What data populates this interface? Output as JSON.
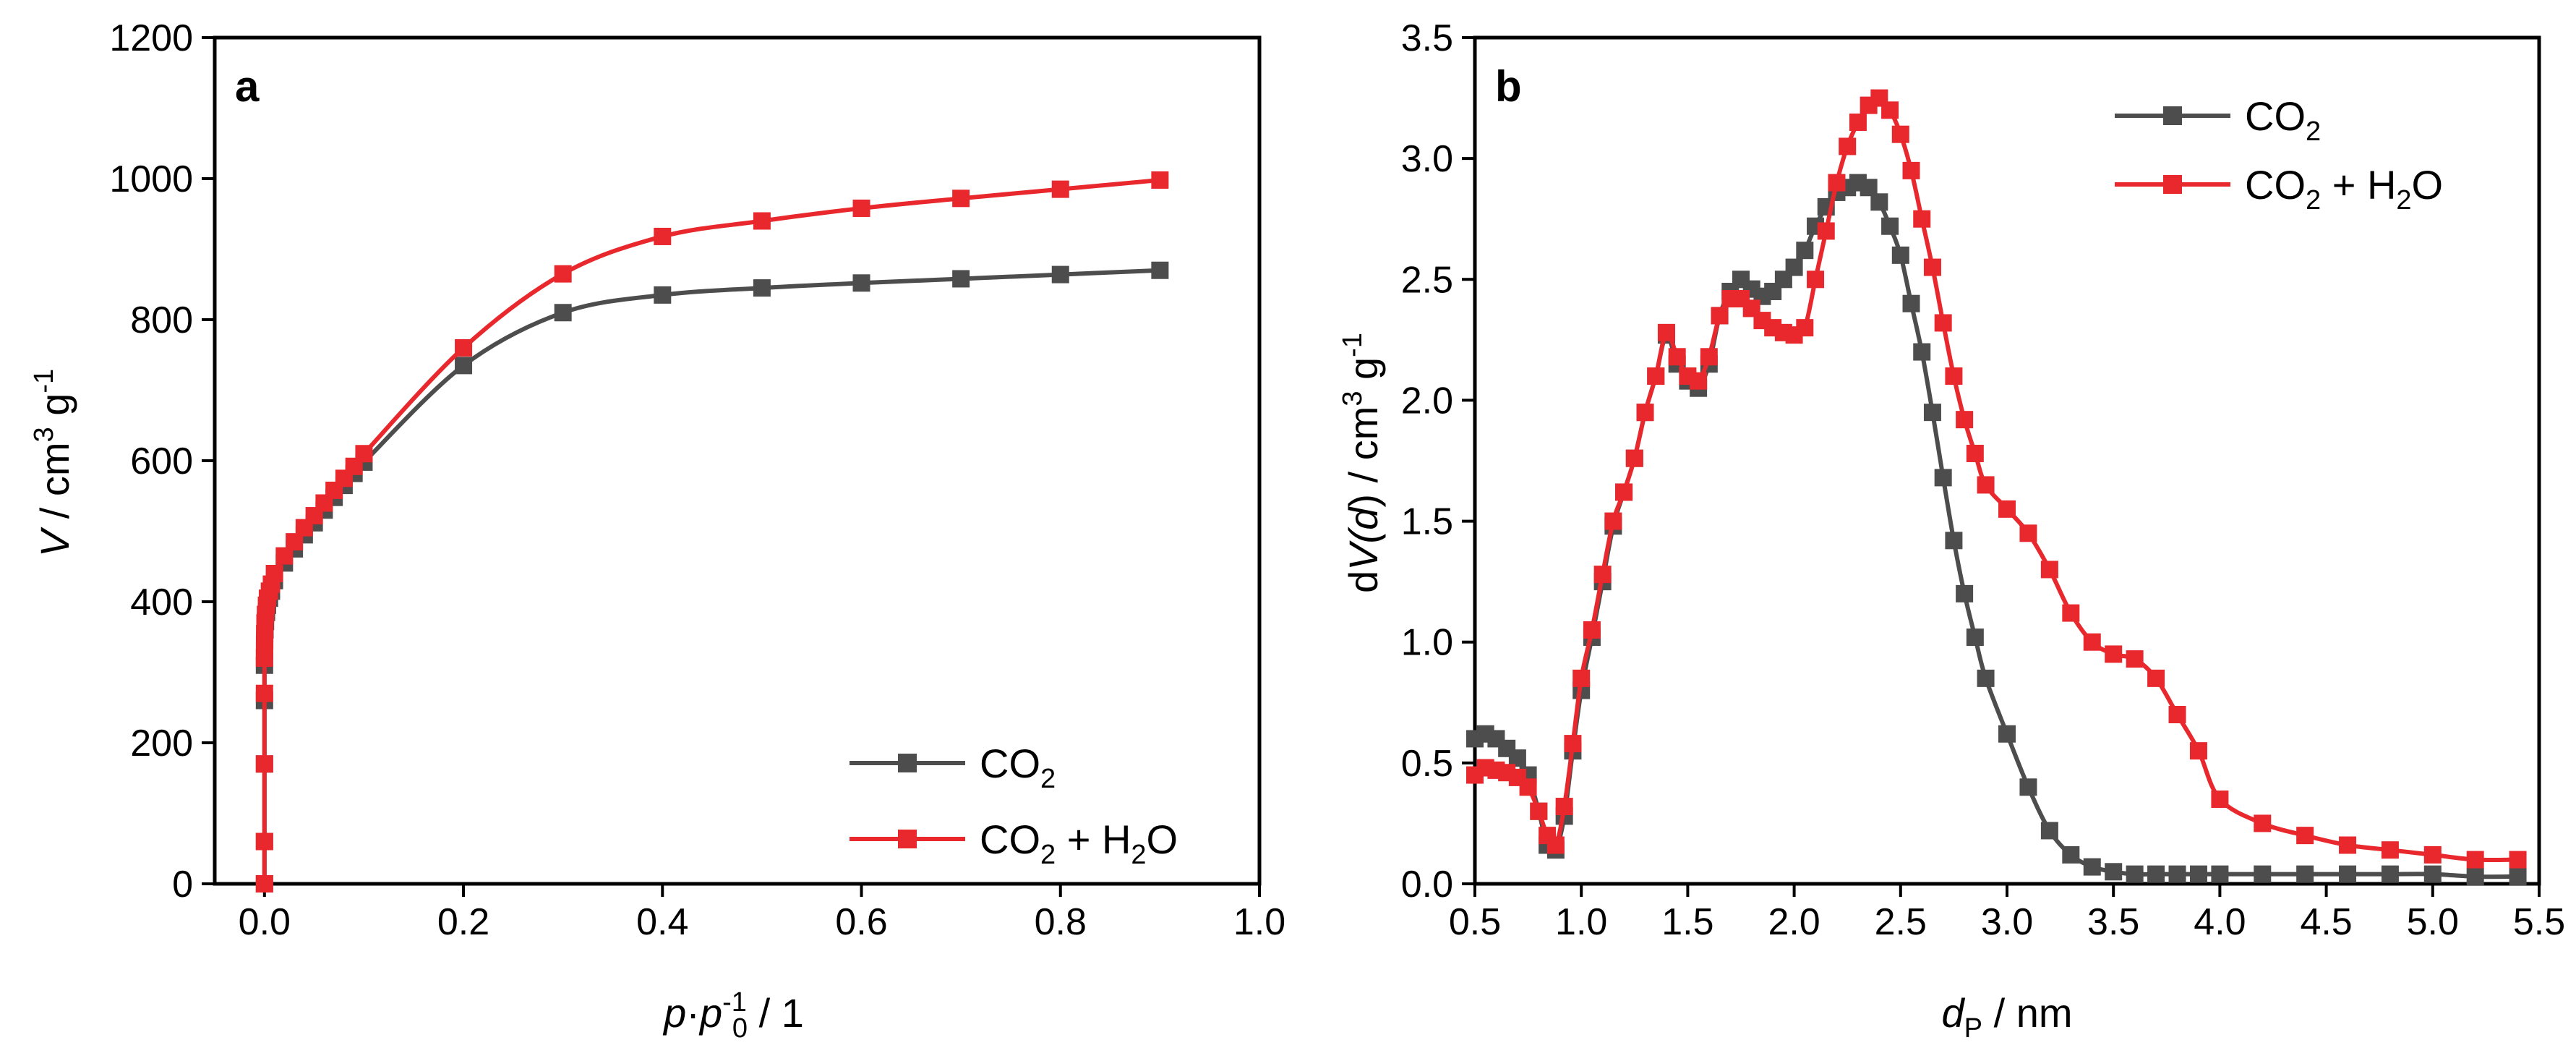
{
  "chart_data": [
    {
      "panel": "a",
      "type": "line",
      "xlabel": "p·p0-1 / 1",
      "ylabel": "V / cm3 g-1",
      "xlim": [
        -0.05,
        1.0
      ],
      "ylim": [
        0,
        1200
      ],
      "xticks": [
        0.0,
        0.2,
        0.4,
        0.6,
        0.8,
        1.0
      ],
      "xtick_labels": [
        "0.0",
        "0.2",
        "0.4",
        "0.6",
        "0.8",
        "1.0"
      ],
      "yticks": [
        0,
        200,
        400,
        600,
        800,
        1000,
        1200
      ],
      "ytick_labels": [
        "0",
        "200",
        "400",
        "600",
        "800",
        "1000",
        "1200"
      ],
      "legend_position": "bottom-right",
      "series": [
        {
          "name": "CO2",
          "color": "#4d4d4d",
          "x": [
            0.0,
            0.0,
            0.0,
            0.0,
            0.0,
            0.0001,
            0.0002,
            0.0005,
            0.001,
            0.002,
            0.003,
            0.005,
            0.007,
            0.01,
            0.02,
            0.03,
            0.04,
            0.05,
            0.06,
            0.07,
            0.08,
            0.09,
            0.1,
            0.2,
            0.3,
            0.4,
            0.5,
            0.6,
            0.7,
            0.8,
            0.9
          ],
          "values": [
            0,
            60,
            170,
            260,
            310,
            330,
            345,
            360,
            372,
            385,
            395,
            405,
            415,
            430,
            455,
            475,
            495,
            512,
            530,
            548,
            565,
            582,
            598,
            735,
            810,
            835,
            845,
            852,
            858,
            864,
            870
          ]
        },
        {
          "name": "CO2 + H2O",
          "color": "#e8282d",
          "x": [
            0.0,
            0.0,
            0.0,
            0.0,
            0.0,
            0.0001,
            0.0002,
            0.0005,
            0.001,
            0.002,
            0.003,
            0.005,
            0.007,
            0.01,
            0.02,
            0.03,
            0.04,
            0.05,
            0.06,
            0.07,
            0.08,
            0.09,
            0.1,
            0.2,
            0.3,
            0.4,
            0.5,
            0.6,
            0.7,
            0.8,
            0.9
          ],
          "values": [
            0,
            60,
            170,
            270,
            320,
            340,
            355,
            370,
            382,
            395,
            405,
            415,
            425,
            440,
            465,
            485,
            505,
            522,
            540,
            558,
            575,
            592,
            610,
            760,
            865,
            918,
            940,
            958,
            972,
            985,
            998
          ]
        }
      ]
    },
    {
      "panel": "b",
      "type": "line",
      "xlabel": "dP / nm",
      "ylabel": "dV(d) / cm3 g-1",
      "xlim": [
        0.5,
        5.5
      ],
      "ylim": [
        0,
        3.5
      ],
      "xticks": [
        0.5,
        1.0,
        1.5,
        2.0,
        2.5,
        3.0,
        3.5,
        4.0,
        4.5,
        5.0,
        5.5
      ],
      "xtick_labels": [
        "0.5",
        "1.0",
        "1.5",
        "2.0",
        "2.5",
        "3.0",
        "3.5",
        "4.0",
        "4.5",
        "5.0",
        "5.5"
      ],
      "yticks": [
        0.0,
        0.5,
        1.0,
        1.5,
        2.0,
        2.5,
        3.0,
        3.5
      ],
      "ytick_labels": [
        "0.0",
        "0.5",
        "1.0",
        "1.5",
        "2.0",
        "2.5",
        "3.0",
        "3.5"
      ],
      "legend_position": "top-right",
      "series": [
        {
          "name": "CO2",
          "color": "#4d4d4d",
          "x": [
            0.5,
            0.55,
            0.6,
            0.65,
            0.7,
            0.75,
            0.8,
            0.84,
            0.88,
            0.92,
            0.96,
            1.0,
            1.05,
            1.1,
            1.15,
            1.2,
            1.25,
            1.3,
            1.35,
            1.4,
            1.45,
            1.5,
            1.55,
            1.6,
            1.65,
            1.7,
            1.75,
            1.8,
            1.85,
            1.9,
            1.95,
            2.0,
            2.05,
            2.1,
            2.15,
            2.2,
            2.25,
            2.3,
            2.35,
            2.4,
            2.45,
            2.5,
            2.55,
            2.6,
            2.65,
            2.7,
            2.75,
            2.8,
            2.85,
            2.9,
            3.0,
            3.1,
            3.2,
            3.3,
            3.4,
            3.5,
            3.6,
            3.7,
            3.8,
            3.9,
            4.0,
            4.2,
            4.4,
            4.6,
            4.8,
            5.0,
            5.2,
            5.4
          ],
          "values": [
            0.6,
            0.62,
            0.6,
            0.56,
            0.52,
            0.45,
            0.3,
            0.16,
            0.14,
            0.28,
            0.55,
            0.8,
            1.02,
            1.25,
            1.48,
            1.62,
            1.76,
            1.95,
            2.1,
            2.27,
            2.15,
            2.08,
            2.05,
            2.15,
            2.35,
            2.45,
            2.5,
            2.46,
            2.43,
            2.45,
            2.5,
            2.55,
            2.62,
            2.72,
            2.8,
            2.86,
            2.88,
            2.9,
            2.88,
            2.82,
            2.72,
            2.6,
            2.4,
            2.2,
            1.95,
            1.68,
            1.42,
            1.2,
            1.02,
            0.85,
            0.62,
            0.4,
            0.22,
            0.12,
            0.07,
            0.05,
            0.04,
            0.04,
            0.04,
            0.04,
            0.04,
            0.04,
            0.04,
            0.04,
            0.04,
            0.04,
            0.03,
            0.03
          ]
        },
        {
          "name": "CO2 + H2O",
          "color": "#e8282d",
          "x": [
            0.5,
            0.55,
            0.6,
            0.65,
            0.7,
            0.75,
            0.8,
            0.84,
            0.88,
            0.92,
            0.96,
            1.0,
            1.05,
            1.1,
            1.15,
            1.2,
            1.25,
            1.3,
            1.35,
            1.4,
            1.45,
            1.5,
            1.55,
            1.6,
            1.65,
            1.7,
            1.75,
            1.8,
            1.85,
            1.9,
            1.95,
            2.0,
            2.05,
            2.1,
            2.15,
            2.2,
            2.25,
            2.3,
            2.35,
            2.4,
            2.45,
            2.5,
            2.55,
            2.6,
            2.65,
            2.7,
            2.75,
            2.8,
            2.85,
            2.9,
            3.0,
            3.1,
            3.2,
            3.3,
            3.4,
            3.5,
            3.6,
            3.7,
            3.8,
            3.9,
            4.0,
            4.2,
            4.4,
            4.6,
            4.8,
            5.0,
            5.2,
            5.4
          ],
          "values": [
            0.45,
            0.48,
            0.47,
            0.46,
            0.44,
            0.4,
            0.3,
            0.2,
            0.16,
            0.32,
            0.58,
            0.85,
            1.05,
            1.28,
            1.5,
            1.62,
            1.76,
            1.95,
            2.1,
            2.28,
            2.18,
            2.1,
            2.08,
            2.18,
            2.35,
            2.42,
            2.42,
            2.38,
            2.33,
            2.3,
            2.28,
            2.27,
            2.3,
            2.5,
            2.7,
            2.9,
            3.05,
            3.15,
            3.22,
            3.25,
            3.2,
            3.1,
            2.95,
            2.75,
            2.55,
            2.32,
            2.1,
            1.92,
            1.78,
            1.65,
            1.55,
            1.45,
            1.3,
            1.12,
            1.0,
            0.95,
            0.93,
            0.85,
            0.7,
            0.55,
            0.35,
            0.25,
            0.2,
            0.16,
            0.14,
            0.12,
            0.1,
            0.1
          ]
        }
      ]
    }
  ],
  "labels": {
    "panel_a": "a",
    "panel_b": "b",
    "legend_a": {
      "co2": {
        "prefix": "CO",
        "sub": "2",
        "suffix": ""
      },
      "co2h2o": {
        "prefix": "CO",
        "sub": "2",
        "mid": " + H",
        "sub2": "2",
        "suffix": "O"
      }
    },
    "legend_b": {
      "co2": {
        "prefix": "CO",
        "sub": "2",
        "suffix": ""
      },
      "co2h2o": {
        "prefix": "CO",
        "sub": "2",
        "mid": " + H",
        "sub2": "2",
        "suffix": "O"
      }
    },
    "a_ylabel": {
      "v": "V",
      "unit": " / cm",
      "sup1": "3",
      "g": " g",
      "sup2": "-1"
    },
    "a_xlabel": {
      "p": "p",
      "dot": "·",
      "p0": "p",
      "sub": "0",
      "sup": "-1",
      "rest": " / 1"
    },
    "b_ylabel": {
      "d": "d",
      "v": "V(",
      "dd": "d",
      "close": ") / cm",
      "sup1": "3",
      "g": " g",
      "sup2": "-1"
    },
    "b_xlabel": {
      "d": "d",
      "sub": "P",
      "rest": " / nm"
    }
  }
}
